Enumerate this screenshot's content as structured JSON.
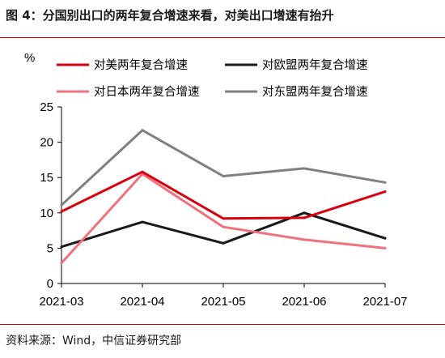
{
  "figure": {
    "title": "图 4：分国别出口的两年复合增速来看，对美出口增速有抬升",
    "source": "资料来源：Wind，中信证券研究部"
  },
  "chart_data": {
    "type": "line",
    "unit": "%",
    "categories": [
      "2021-03",
      "2021-04",
      "2021-05",
      "2021-06",
      "2021-07"
    ],
    "ylim": [
      0,
      25
    ],
    "yticks": [
      0,
      5,
      10,
      15,
      20,
      25
    ],
    "grid": false,
    "legend_position": "top",
    "series": [
      {
        "name": "对美两年复合增速",
        "color": "#d7000f",
        "values": [
          10.2,
          15.8,
          9.2,
          9.3,
          13.0
        ]
      },
      {
        "name": "对欧盟两年复合增速",
        "color": "#1a1a1a",
        "values": [
          5.2,
          8.7,
          5.7,
          10.0,
          6.4
        ]
      },
      {
        "name": "对日本两年复合增速",
        "color": "#f0707d",
        "values": [
          2.9,
          15.5,
          8.0,
          6.2,
          5.0
        ]
      },
      {
        "name": "对东盟两年复合增速",
        "color": "#808080",
        "values": [
          11.1,
          21.7,
          15.2,
          16.3,
          14.3
        ]
      }
    ]
  }
}
